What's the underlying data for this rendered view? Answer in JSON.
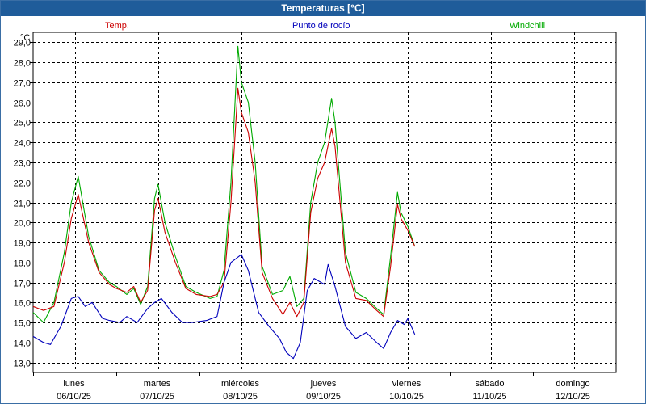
{
  "window": {
    "title": "Temperaturas [°C]"
  },
  "colors": {
    "title_bar": "#1f5c9a",
    "temp": "#cc0000",
    "dew": "#0000bb",
    "windchill": "#00aa00"
  },
  "chart_data": {
    "type": "line",
    "title": "Temperaturas [°C]",
    "ylabel": "°C",
    "ylim": [
      12.5,
      29.5
    ],
    "xlim": [
      "06/10/25 00:00",
      "13/10/25 00:00"
    ],
    "y_ticks": [
      "13,0",
      "14,0",
      "15,0",
      "16,0",
      "17,0",
      "18,0",
      "19,0",
      "20,0",
      "21,0",
      "22,0",
      "23,0",
      "24,0",
      "25,0",
      "26,0",
      "27,0",
      "28,0",
      "29,0"
    ],
    "x_ticks": [
      {
        "day": "lunes",
        "date": "06/10/25"
      },
      {
        "day": "martes",
        "date": "07/10/25"
      },
      {
        "day": "miércoles",
        "date": "08/10/25"
      },
      {
        "day": "jueves",
        "date": "09/10/25"
      },
      {
        "day": "viernes",
        "date": "10/10/25"
      },
      {
        "day": "sábado",
        "date": "11/10/25"
      },
      {
        "day": "domingo",
        "date": "12/10/25"
      }
    ],
    "grid": true,
    "legend_position": "top",
    "series": [
      {
        "name": "Temp.",
        "color": "#cc0000",
        "points": [
          [
            "06/10/25 00:00",
            15.8
          ],
          [
            "06/10/25 03:00",
            15.6
          ],
          [
            "06/10/25 06:00",
            15.8
          ],
          [
            "06/10/25 09:00",
            18.0
          ],
          [
            "06/10/25 11:00",
            20.2
          ],
          [
            "06/10/25 13:00",
            21.4
          ],
          [
            "06/10/25 16:00",
            19.0
          ],
          [
            "06/10/25 19:00",
            17.5
          ],
          [
            "06/10/25 22:00",
            16.9
          ],
          [
            "07/10/25 00:00",
            16.7
          ],
          [
            "07/10/25 03:00",
            16.5
          ],
          [
            "07/10/25 05:00",
            16.8
          ],
          [
            "07/10/25 07:00",
            16.0
          ],
          [
            "07/10/25 09:00",
            16.6
          ],
          [
            "07/10/25 11:00",
            20.6
          ],
          [
            "07/10/25 12:00",
            21.2
          ],
          [
            "07/10/25 14:00",
            19.5
          ],
          [
            "07/10/25 17:00",
            18.0
          ],
          [
            "07/10/25 20:00",
            16.7
          ],
          [
            "07/10/25 23:00",
            16.4
          ],
          [
            "08/10/25 03:00",
            16.3
          ],
          [
            "08/10/25 05:00",
            16.4
          ],
          [
            "08/10/25 07:00",
            17.0
          ],
          [
            "08/10/25 09:00",
            21.0
          ],
          [
            "08/10/25 11:00",
            26.7
          ],
          [
            "08/10/25 12:00",
            25.5
          ],
          [
            "08/10/25 14:00",
            24.5
          ],
          [
            "08/10/25 16:00",
            22.0
          ],
          [
            "08/10/25 18:00",
            17.5
          ],
          [
            "08/10/25 21:00",
            16.2
          ],
          [
            "09/10/25 00:00",
            15.4
          ],
          [
            "09/10/25 02:00",
            16.0
          ],
          [
            "09/10/25 04:00",
            15.3
          ],
          [
            "09/10/25 06:00",
            16.0
          ],
          [
            "09/10/25 08:00",
            20.5
          ],
          [
            "09/10/25 10:00",
            22.2
          ],
          [
            "09/10/25 12:00",
            23.0
          ],
          [
            "09/10/25 14:00",
            24.7
          ],
          [
            "09/10/25 15:00",
            23.8
          ],
          [
            "09/10/25 18:00",
            18.0
          ],
          [
            "09/10/25 21:00",
            16.2
          ],
          [
            "10/10/25 00:00",
            16.1
          ],
          [
            "10/10/25 03:00",
            15.6
          ],
          [
            "10/10/25 05:00",
            15.3
          ],
          [
            "10/10/25 07:00",
            17.8
          ],
          [
            "10/10/25 09:00",
            20.9
          ],
          [
            "10/10/25 10:00",
            20.2
          ],
          [
            "10/10/25 12:00",
            19.6
          ],
          [
            "10/10/25 14:00",
            18.8
          ]
        ]
      },
      {
        "name": "Punto de rocío",
        "color": "#0000bb",
        "points": [
          [
            "06/10/25 00:00",
            14.3
          ],
          [
            "06/10/25 03:00",
            14.0
          ],
          [
            "06/10/25 05:00",
            13.9
          ],
          [
            "06/10/25 08:00",
            14.8
          ],
          [
            "06/10/25 11:00",
            16.2
          ],
          [
            "06/10/25 13:00",
            16.3
          ],
          [
            "06/10/25 15:00",
            15.8
          ],
          [
            "06/10/25 17:00",
            16.0
          ],
          [
            "06/10/25 20:00",
            15.2
          ],
          [
            "06/10/25 22:00",
            15.1
          ],
          [
            "07/10/25 01:00",
            15.0
          ],
          [
            "07/10/25 03:00",
            15.3
          ],
          [
            "07/10/25 06:00",
            15.0
          ],
          [
            "07/10/25 09:00",
            15.7
          ],
          [
            "07/10/25 11:00",
            16.0
          ],
          [
            "07/10/25 13:00",
            16.2
          ],
          [
            "07/10/25 16:00",
            15.5
          ],
          [
            "07/10/25 19:00",
            15.0
          ],
          [
            "07/10/25 22:00",
            15.0
          ],
          [
            "08/10/25 02:00",
            15.1
          ],
          [
            "08/10/25 05:00",
            15.3
          ],
          [
            "08/10/25 07:00",
            17.0
          ],
          [
            "08/10/25 09:00",
            18.0
          ],
          [
            "08/10/25 12:00",
            18.4
          ],
          [
            "08/10/25 14:00",
            17.6
          ],
          [
            "08/10/25 17:00",
            15.5
          ],
          [
            "08/10/25 20:00",
            14.8
          ],
          [
            "08/10/25 23:00",
            14.2
          ],
          [
            "09/10/25 01:00",
            13.5
          ],
          [
            "09/10/25 03:00",
            13.2
          ],
          [
            "09/10/25 05:00",
            14.0
          ],
          [
            "09/10/25 07:00",
            16.6
          ],
          [
            "09/10/25 09:00",
            17.2
          ],
          [
            "09/10/25 12:00",
            16.9
          ],
          [
            "09/10/25 13:00",
            17.9
          ],
          [
            "09/10/25 15:00",
            16.8
          ],
          [
            "09/10/25 18:00",
            14.8
          ],
          [
            "09/10/25 21:00",
            14.2
          ],
          [
            "10/10/25 00:00",
            14.5
          ],
          [
            "10/10/25 03:00",
            14.0
          ],
          [
            "10/10/25 05:00",
            13.7
          ],
          [
            "10/10/25 07:00",
            14.5
          ],
          [
            "10/10/25 09:00",
            15.1
          ],
          [
            "10/10/25 11:00",
            14.9
          ],
          [
            "10/10/25 12:00",
            15.2
          ],
          [
            "10/10/25 14:00",
            14.4
          ]
        ]
      },
      {
        "name": "Windchill",
        "color": "#00aa00",
        "points": [
          [
            "06/10/25 00:00",
            15.5
          ],
          [
            "06/10/25 03:00",
            15.0
          ],
          [
            "06/10/25 06:00",
            16.0
          ],
          [
            "06/10/25 09:00",
            18.5
          ],
          [
            "06/10/25 11:00",
            21.0
          ],
          [
            "06/10/25 13:00",
            22.3
          ],
          [
            "06/10/25 16:00",
            19.3
          ],
          [
            "06/10/25 19:00",
            17.6
          ],
          [
            "06/10/25 22:00",
            17.0
          ],
          [
            "07/10/25 00:00",
            16.8
          ],
          [
            "07/10/25 03:00",
            16.4
          ],
          [
            "07/10/25 05:00",
            16.7
          ],
          [
            "07/10/25 07:00",
            15.9
          ],
          [
            "07/10/25 09:00",
            16.8
          ],
          [
            "07/10/25 11:00",
            21.2
          ],
          [
            "07/10/25 12:00",
            21.9
          ],
          [
            "07/10/25 14:00",
            20.0
          ],
          [
            "07/10/25 17:00",
            18.3
          ],
          [
            "07/10/25 20:00",
            16.8
          ],
          [
            "07/10/25 23:00",
            16.5
          ],
          [
            "08/10/25 03:00",
            16.2
          ],
          [
            "08/10/25 05:00",
            16.3
          ],
          [
            "08/10/25 07:00",
            17.6
          ],
          [
            "08/10/25 09:00",
            22.0
          ],
          [
            "08/10/25 11:00",
            28.8
          ],
          [
            "08/10/25 12:00",
            27.0
          ],
          [
            "08/10/25 14:00",
            26.0
          ],
          [
            "08/10/25 16:00",
            23.0
          ],
          [
            "08/10/25 18:00",
            17.8
          ],
          [
            "08/10/25 21:00",
            16.4
          ],
          [
            "09/10/25 00:00",
            16.6
          ],
          [
            "09/10/25 02:00",
            17.3
          ],
          [
            "09/10/25 04:00",
            15.8
          ],
          [
            "09/10/25 06:00",
            16.2
          ],
          [
            "09/10/25 08:00",
            21.0
          ],
          [
            "09/10/25 10:00",
            23.0
          ],
          [
            "09/10/25 12:00",
            24.0
          ],
          [
            "09/10/25 14:00",
            26.2
          ],
          [
            "09/10/25 15:00",
            25.0
          ],
          [
            "09/10/25 18:00",
            18.5
          ],
          [
            "09/10/25 21:00",
            16.5
          ],
          [
            "10/10/25 00:00",
            16.2
          ],
          [
            "10/10/25 03:00",
            15.7
          ],
          [
            "10/10/25 05:00",
            15.4
          ],
          [
            "10/10/25 07:00",
            18.3
          ],
          [
            "10/10/25 09:00",
            21.5
          ],
          [
            "10/10/25 10:00",
            20.5
          ],
          [
            "10/10/25 12:00",
            19.8
          ],
          [
            "10/10/25 14:00",
            18.8
          ]
        ]
      }
    ]
  }
}
